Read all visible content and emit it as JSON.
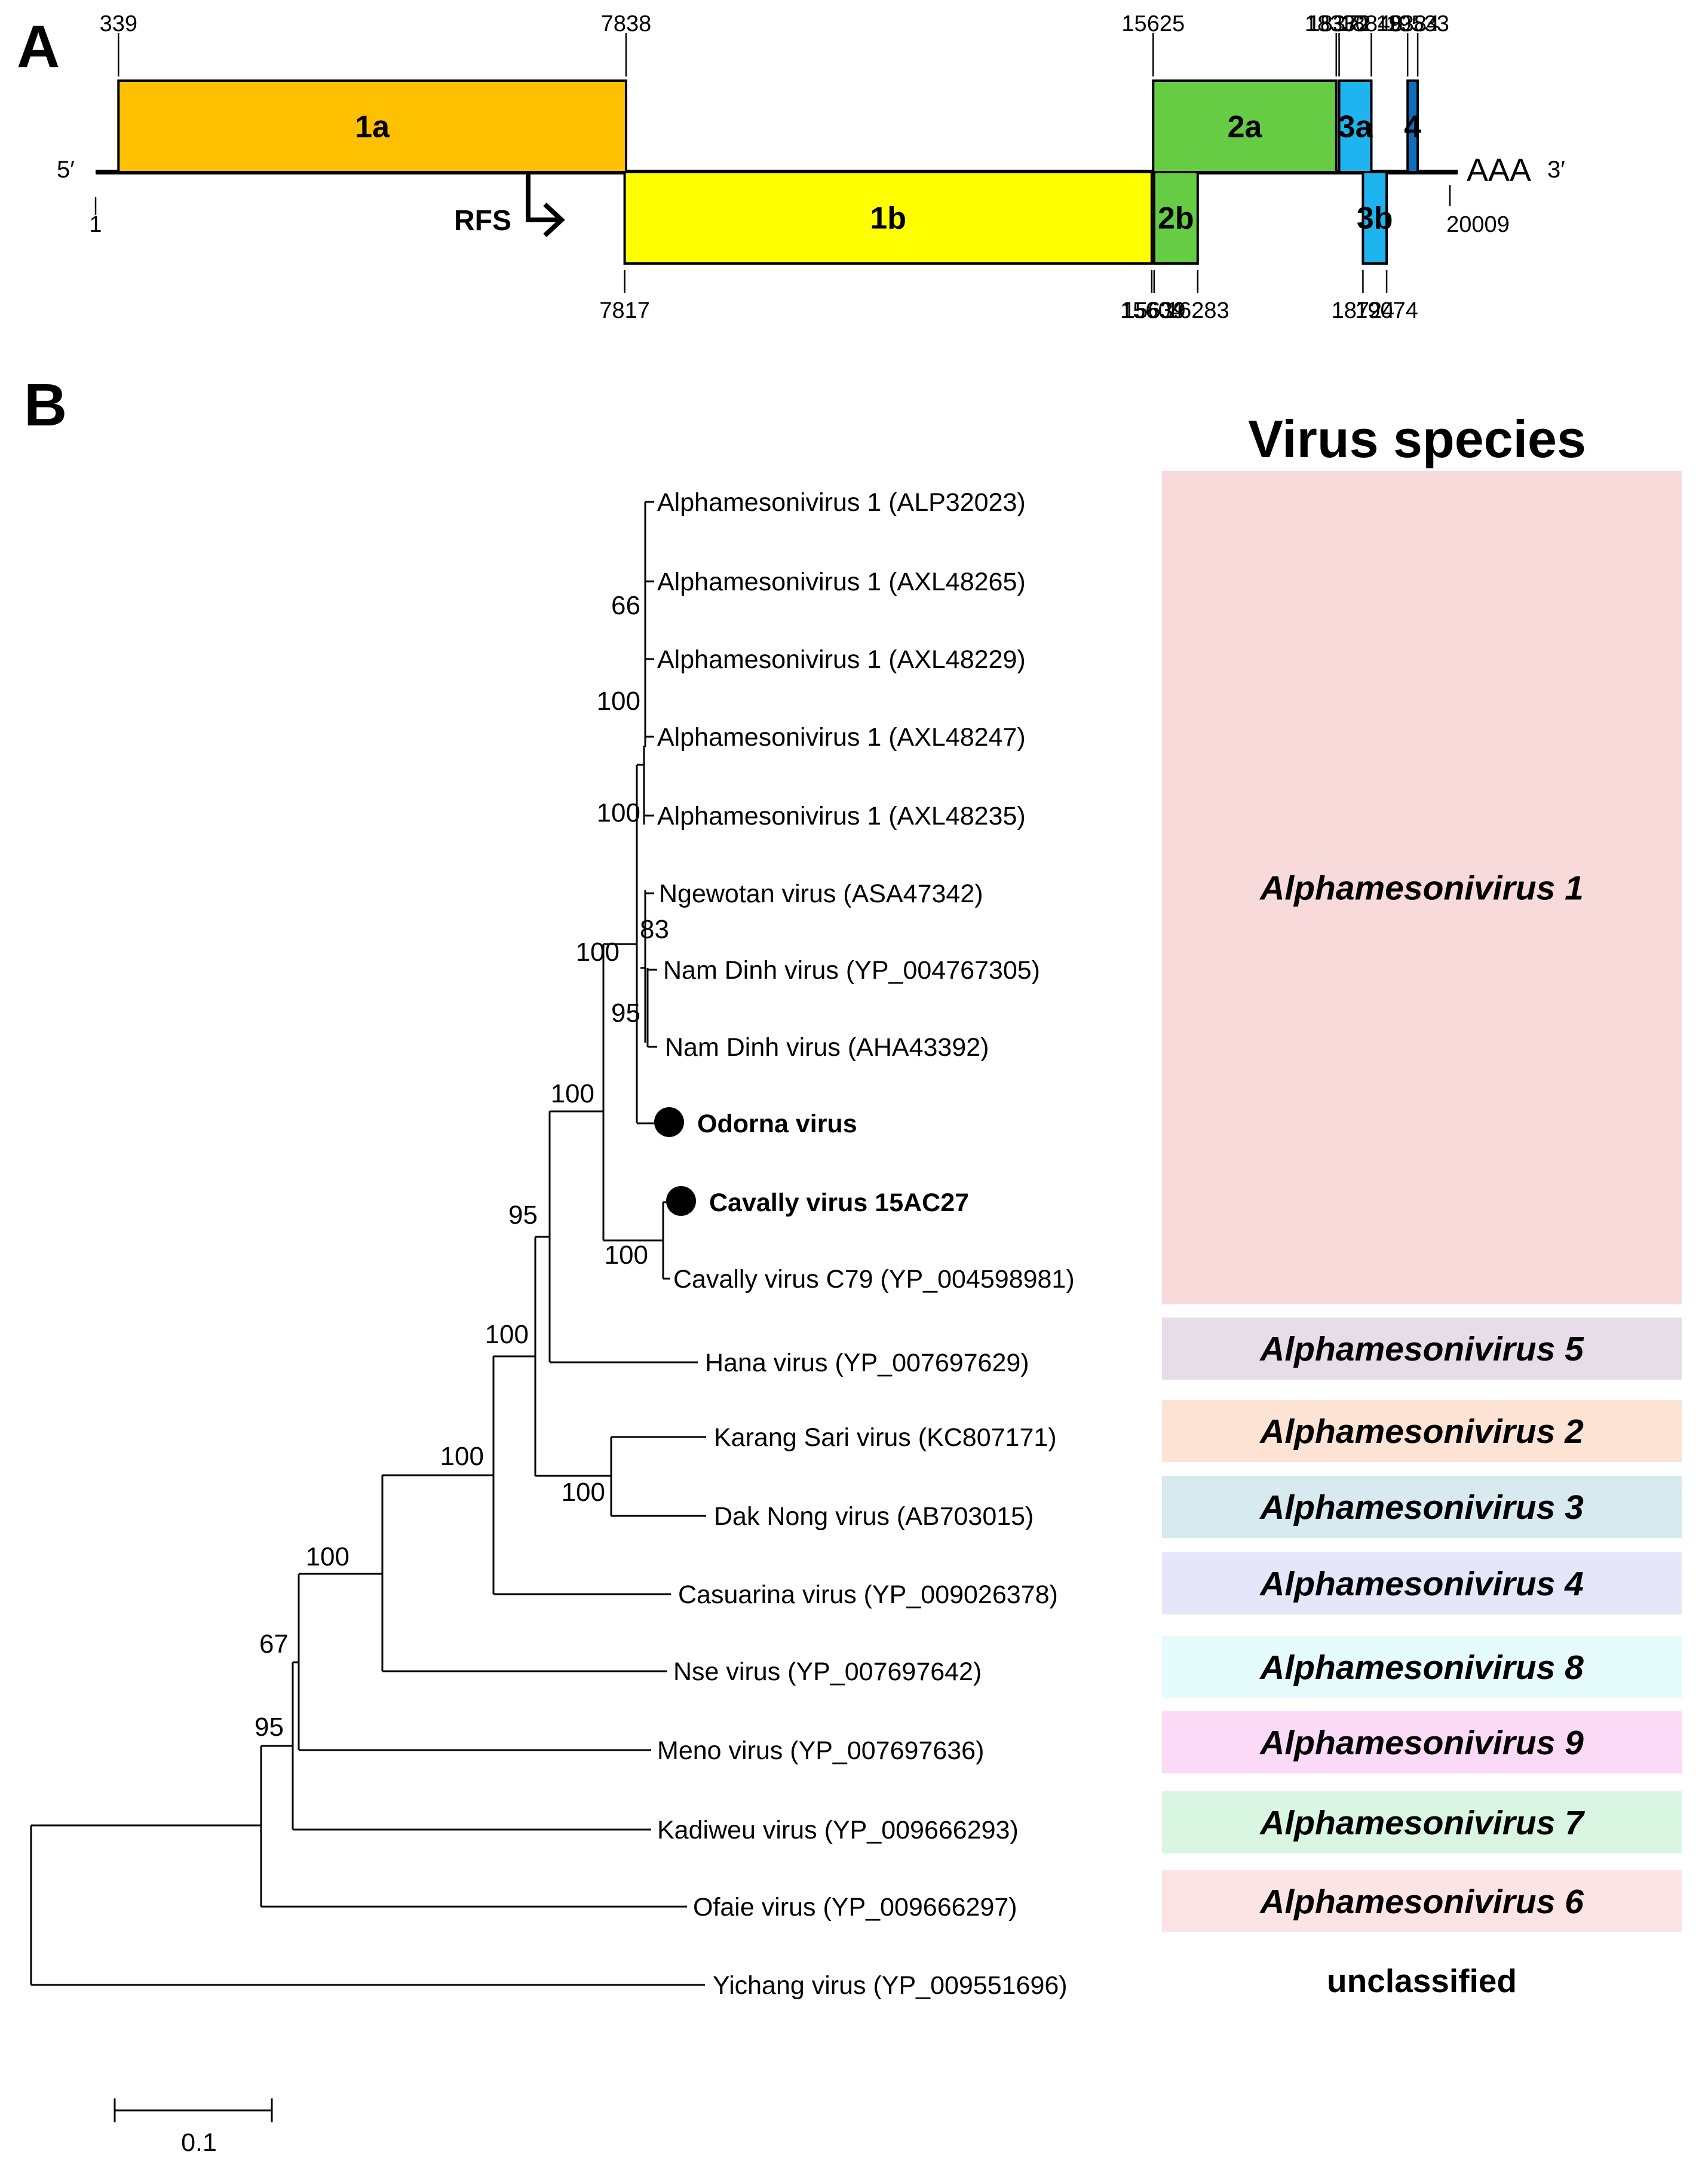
{
  "panel_a": {
    "label": "A",
    "five_prime": "5′",
    "three_prime": "3′",
    "poly_a": "AAA",
    "genome_start": "1",
    "genome_end": "20009",
    "rfs_label": "RFS",
    "orfs": [
      {
        "name": "1a",
        "start": 339,
        "end": 7838,
        "strand": "top",
        "color": "#FFC000",
        "start_label": "339",
        "end_label": "7838"
      },
      {
        "name": "1b",
        "start": 7817,
        "end": 15604,
        "strand": "bottom",
        "color": "#FFFF00",
        "start_label": "7817",
        "end_label": "15604"
      },
      {
        "name": "2a",
        "start": 15625,
        "end": 18330,
        "strand": "top",
        "color": "#66CC44",
        "start_label": "15625",
        "end_label": "18330"
      },
      {
        "name": "2b",
        "start": 15639,
        "end": 16283,
        "strand": "bottom",
        "color": "#66CC44",
        "start_label": "15639",
        "end_label": "16283"
      },
      {
        "name": "3a",
        "start": 18372,
        "end": 18848,
        "strand": "top",
        "color": "#1EB4F0",
        "start_label": "18372",
        "end_label": "18848"
      },
      {
        "name": "3b",
        "start": 18724,
        "end": 19074,
        "strand": "bottom",
        "color": "#1EB4F0",
        "start_label": "18724",
        "end_label": "19074"
      },
      {
        "name": "4",
        "start": 19384,
        "end": 19533,
        "strand": "top",
        "color": "#0E6EC0",
        "start_label": "19384",
        "end_label": "19533"
      }
    ]
  },
  "panel_b": {
    "label": "B",
    "header": "Virus species",
    "scale_label": "0.1",
    "taxa": [
      {
        "label": "Alphamesonivirus 1 (ALP32023)",
        "bold": false,
        "marker": false
      },
      {
        "label": "Alphamesonivirus 1 (AXL48265)",
        "bold": false,
        "marker": false
      },
      {
        "label": "Alphamesonivirus 1 (AXL48229)",
        "bold": false,
        "marker": false
      },
      {
        "label": "Alphamesonivirus 1 (AXL48247)",
        "bold": false,
        "marker": false
      },
      {
        "label": "Alphamesonivirus 1 (AXL48235)",
        "bold": false,
        "marker": false
      },
      {
        "label": "Ngewotan virus (ASA47342)",
        "bold": false,
        "marker": false
      },
      {
        "label": "Nam Dinh virus (YP_004767305)",
        "bold": false,
        "marker": false
      },
      {
        "label": "Nam Dinh virus (AHA43392)",
        "bold": false,
        "marker": false
      },
      {
        "label": "Odorna virus",
        "bold": true,
        "marker": true
      },
      {
        "label": "Cavally virus 15AC27",
        "bold": true,
        "marker": true
      },
      {
        "label": "Cavally virus C79 (YP_004598981)",
        "bold": false,
        "marker": false
      },
      {
        "label": "Hana virus  (YP_007697629)",
        "bold": false,
        "marker": false
      },
      {
        "label": "Karang Sari virus (KC807171)",
        "bold": false,
        "marker": false
      },
      {
        "label": "Dak Nong virus (AB703015)",
        "bold": false,
        "marker": false
      },
      {
        "label": "Casuarina virus (YP_009026378)",
        "bold": false,
        "marker": false
      },
      {
        "label": "Nse virus (YP_007697642)",
        "bold": false,
        "marker": false
      },
      {
        "label": "Meno virus (YP_007697636)",
        "bold": false,
        "marker": false
      },
      {
        "label": "Kadiweu virus (YP_009666293)",
        "bold": false,
        "marker": false
      },
      {
        "label": "Ofaie virus (YP_009666297)",
        "bold": false,
        "marker": false
      },
      {
        "label": "Yichang virus (YP_009551696)",
        "bold": false,
        "marker": false
      }
    ],
    "bootstraps": [
      "66",
      "100",
      "100",
      "83",
      "100",
      "95",
      "100",
      "100",
      "95",
      "100",
      "100",
      "100",
      "100",
      "67",
      "95"
    ],
    "species": [
      {
        "name": "Alphamesonivirus 1",
        "color": "#F9DADA",
        "italic": true
      },
      {
        "name": "Alphamesonivirus 5",
        "color": "#E6DDE8",
        "italic": true
      },
      {
        "name": "Alphamesonivirus 2",
        "color": "#FCE3D3",
        "italic": true
      },
      {
        "name": "Alphamesonivirus 3",
        "color": "#D6EAF0",
        "italic": true
      },
      {
        "name": "Alphamesonivirus 4",
        "color": "#E6E6FA",
        "italic": true
      },
      {
        "name": "Alphamesonivirus 8",
        "color": "#E6FCFC",
        "italic": true
      },
      {
        "name": "Alphamesonivirus 9",
        "color": "#FADAF6",
        "italic": true
      },
      {
        "name": "Alphamesonivirus 7",
        "color": "#D8F6E2",
        "italic": true
      },
      {
        "name": "Alphamesonivirus 6",
        "color": "#FCE4E4",
        "italic": true
      },
      {
        "name": "unclassified",
        "color": "#FFFFFF",
        "italic": false
      }
    ]
  }
}
